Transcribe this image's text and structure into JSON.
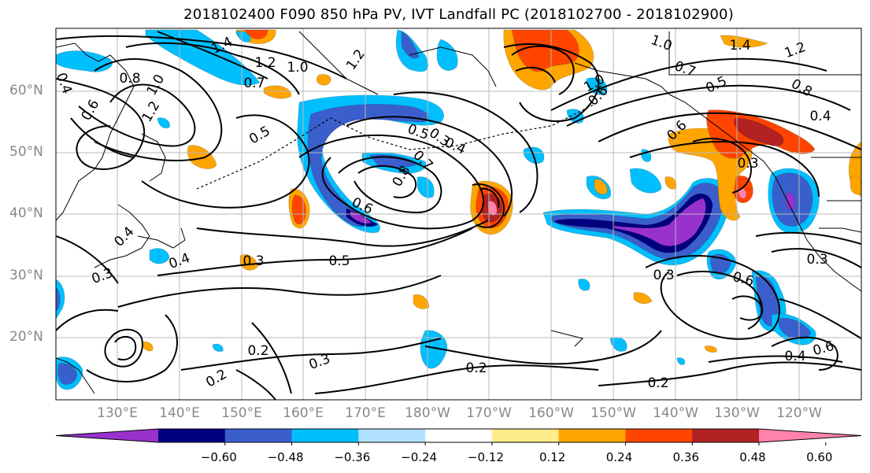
{
  "title": "2018102400 F090 850 hPa PV, IVT Landfall PC (2018102700 - 2018102900)",
  "lat_labels": [
    "60°N",
    "50°N",
    "40°N",
    "30°N",
    "20°N"
  ],
  "lon_labels": [
    "130°E",
    "140°E",
    "150°E",
    "160°E",
    "170°E",
    "180°W",
    "170°W",
    "160°W",
    "150°W",
    "140°W",
    "130°W",
    "120°W"
  ],
  "colorbar": {
    "ticks": [
      "−0.60",
      "−0.48",
      "−0.36",
      "−0.24",
      "−0.12",
      "0.12",
      "0.24",
      "0.36",
      "0.48",
      "0.60"
    ],
    "colors": [
      "#9932cc",
      "#000080",
      "#3a5fcd",
      "#00bfff",
      "#b0e2ff",
      "#ffffff",
      "#ffec8b",
      "#ffa500",
      "#ff4500",
      "#b22222",
      "#ff82ab"
    ]
  },
  "contour_labels": [
    "1.4",
    "1.2",
    "1.0",
    "0.7",
    "1.2",
    "0.4",
    "0.8",
    "0.6",
    "1.2",
    "1.0",
    "0.5",
    "0.5",
    "0.4",
    "0.7",
    "0.8",
    "0.6",
    "0.3",
    "0.5",
    "0.4",
    "0.3",
    "0.4",
    "0.2",
    "0.3",
    "0.2",
    "0.2",
    "0.2",
    "1.0",
    "1.0",
    "0.7",
    "0.5",
    "1.4",
    "1.2",
    "0.8",
    "0.4",
    "0.6",
    "0.3",
    "0.3",
    "0.6",
    "0.4",
    "0.6",
    "0.3",
    "0.6",
    "0.3"
  ]
}
